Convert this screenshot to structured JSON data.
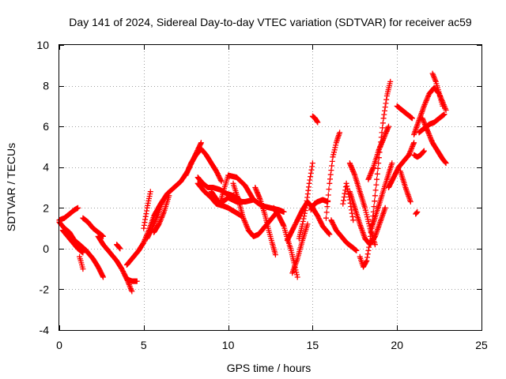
{
  "chart_data": {
    "type": "scatter",
    "title": "Day 141 of 2024, Sidereal Day-to-day VTEC variation (SDTVAR) for receiver ac59",
    "xlabel": "GPS time / hours",
    "ylabel": "SDTVAR / TECUs",
    "xlim": [
      0,
      25
    ],
    "ylim": [
      -4,
      10
    ],
    "xticks": [
      0,
      5,
      10,
      15,
      20,
      25
    ],
    "yticks": [
      -4,
      -2,
      0,
      2,
      4,
      6,
      8,
      10
    ],
    "xtick_labels": [
      "0",
      "5",
      "10",
      "15",
      "20",
      "25"
    ],
    "ytick_labels": [
      "-4",
      "-2",
      "0",
      "2",
      "4",
      "6",
      "8",
      "10"
    ],
    "grid": true,
    "marker": "+",
    "series": [
      {
        "name": "SDTVAR",
        "color": "#ff0000",
        "tracks": [
          {
            "x": [
              0.0,
              0.3,
              0.6,
              0.9,
              1.1
            ],
            "y": [
              1.4,
              1.5,
              1.7,
              1.9,
              2.0
            ]
          },
          {
            "x": [
              0.0,
              0.3,
              0.6,
              0.9,
              1.2,
              1.6,
              2.0,
              2.3,
              2.6
            ],
            "y": [
              1.3,
              1.0,
              0.8,
              0.4,
              0.2,
              -0.1,
              -0.5,
              -0.9,
              -1.4
            ]
          },
          {
            "x": [
              0.2,
              0.5,
              0.8,
              1.1,
              1.4
            ],
            "y": [
              0.9,
              0.6,
              0.3,
              0.0,
              -0.2
            ]
          },
          {
            "x": [
              1.2,
              1.4
            ],
            "y": [
              -0.4,
              -1.0
            ]
          },
          {
            "x": [
              1.4,
              1.7,
              2.0,
              2.3,
              2.6
            ],
            "y": [
              1.5,
              1.3,
              1.0,
              0.8,
              0.6
            ]
          },
          {
            "x": [
              2.3,
              2.6,
              3.0,
              3.4,
              3.7,
              4.0,
              4.3
            ],
            "y": [
              0.6,
              0.2,
              -0.2,
              -0.6,
              -1.0,
              -1.5,
              -2.1
            ]
          },
          {
            "x": [
              3.4,
              3.6
            ],
            "y": [
              0.2,
              0.0
            ]
          },
          {
            "x": [
              4.0,
              4.3,
              4.6
            ],
            "y": [
              -1.5,
              -1.6,
              -1.6
            ]
          },
          {
            "x": [
              4.0,
              4.3,
              4.7,
              5.0,
              5.3,
              5.6,
              6.0,
              6.4,
              6.8,
              7.2,
              7.6,
              8.0,
              8.4
            ],
            "y": [
              -0.8,
              -0.5,
              -0.1,
              0.3,
              0.9,
              1.6,
              2.2,
              2.7,
              3.0,
              3.3,
              3.8,
              4.5,
              5.2
            ]
          },
          {
            "x": [
              5.0,
              5.2,
              5.4
            ],
            "y": [
              1.0,
              2.0,
              2.8
            ]
          },
          {
            "x": [
              5.2,
              5.5,
              5.8,
              6.1
            ],
            "y": [
              0.5,
              1.0,
              1.6,
              2.3
            ]
          },
          {
            "x": [
              5.6,
              5.9,
              6.2,
              6.5
            ],
            "y": [
              0.8,
              1.2,
              1.8,
              2.6
            ]
          },
          {
            "x": [
              7.5,
              7.8,
              8.1,
              8.4,
              8.7,
              9.0,
              9.3,
              9.6
            ],
            "y": [
              3.6,
              4.2,
              4.6,
              4.9,
              4.6,
              4.2,
              3.8,
              3.3
            ]
          },
          {
            "x": [
              8.2,
              8.5,
              8.8,
              9.1,
              9.5,
              9.9,
              10.3,
              10.7
            ],
            "y": [
              3.5,
              3.2,
              3.0,
              3.0,
              2.9,
              2.7,
              2.6,
              2.4
            ]
          },
          {
            "x": [
              8.2,
              8.6,
              9.0,
              9.3,
              9.7,
              10.0,
              10.4,
              10.8
            ],
            "y": [
              3.2,
              2.8,
              2.5,
              2.2,
              2.1,
              2.0,
              1.8,
              1.6
            ]
          },
          {
            "x": [
              9.0,
              9.5,
              10.0,
              10.5,
              11.0,
              11.5,
              12.0,
              12.5,
              13.0,
              13.3
            ],
            "y": [
              2.8,
              2.2,
              2.5,
              2.3,
              2.3,
              2.4,
              2.1,
              2.0,
              1.9,
              1.8
            ]
          },
          {
            "x": [
              9.5,
              10.0,
              10.5,
              11.0,
              11.5
            ],
            "y": [
              2.2,
              3.6,
              3.5,
              3.1,
              2.4
            ]
          },
          {
            "x": [
              10.3,
              10.6,
              10.9,
              11.2,
              11.5,
              11.8,
              12.1,
              12.4,
              12.7,
              13.0
            ],
            "y": [
              3.2,
              2.4,
              1.5,
              0.9,
              0.6,
              0.7,
              1.0,
              1.3,
              1.6,
              1.9
            ]
          },
          {
            "x": [
              11.6,
              11.9,
              12.2,
              12.4,
              12.6,
              12.8
            ],
            "y": [
              3.0,
              2.4,
              1.6,
              0.9,
              0.3,
              -0.3
            ]
          },
          {
            "x": [
              12.7,
              13.0,
              13.3,
              13.5,
              13.7,
              13.9,
              14.1
            ],
            "y": [
              2.0,
              1.6,
              1.1,
              0.5,
              0.0,
              -0.7,
              -1.4
            ]
          },
          {
            "x": [
              13.5,
              13.8,
              14.1,
              14.4,
              14.7,
              15.0,
              15.3,
              15.6,
              16.0
            ],
            "y": [
              0.4,
              0.9,
              1.4,
              1.9,
              2.3,
              2.0,
              1.6,
              1.1,
              0.7
            ]
          },
          {
            "x": [
              13.8,
              14.1,
              14.4,
              14.7
            ],
            "y": [
              -1.2,
              -0.5,
              0.4,
              1.2
            ]
          },
          {
            "x": [
              14.2,
              14.4,
              14.6,
              14.8,
              15.0
            ],
            "y": [
              0.5,
              1.2,
              2.0,
              3.2,
              4.2
            ]
          },
          {
            "x": [
              15.0,
              15.15,
              15.3
            ],
            "y": [
              6.5,
              6.4,
              6.2
            ]
          },
          {
            "x": [
              14.9,
              15.1,
              15.3,
              15.6,
              15.9
            ],
            "y": [
              1.9,
              2.2,
              2.3,
              2.4,
              2.3
            ]
          },
          {
            "x": [
              15.8,
              16.0,
              16.2,
              16.4,
              16.6
            ],
            "y": [
              1.5,
              3.2,
              4.5,
              5.2,
              5.7
            ]
          },
          {
            "x": [
              16.1,
              16.4,
              16.7,
              17.0,
              17.3,
              17.6
            ],
            "y": [
              1.4,
              0.9,
              0.6,
              0.3,
              0.1,
              -0.1
            ]
          },
          {
            "x": [
              16.8,
              17.0,
              17.2,
              17.4
            ],
            "y": [
              2.2,
              3.2,
              2.4,
              1.4
            ]
          },
          {
            "x": [
              17.2,
              17.5,
              17.8,
              18.1,
              18.4,
              18.7,
              19.0,
              19.3
            ],
            "y": [
              2.8,
              2.0,
              1.2,
              0.5,
              0.2,
              0.6,
              1.3,
              2.0
            ]
          },
          {
            "x": [
              17.2,
              17.5,
              17.8,
              18.1,
              18.4,
              18.7
            ],
            "y": [
              4.2,
              3.6,
              2.8,
              2.0,
              1.0,
              0.2
            ]
          },
          {
            "x": [
              17.8,
              18.0,
              18.2,
              18.4,
              18.6,
              18.8,
              19.0,
              19.2,
              19.4,
              19.6
            ],
            "y": [
              -0.4,
              -0.9,
              -0.6,
              0.4,
              1.8,
              3.4,
              5.0,
              6.4,
              7.5,
              8.2
            ]
          },
          {
            "x": [
              18.5,
              18.8,
              19.1,
              19.4,
              19.7
            ],
            "y": [
              1.0,
              1.8,
              2.6,
              3.4,
              4.2
            ]
          },
          {
            "x": [
              18.3,
              18.6,
              18.9,
              19.2,
              19.5
            ],
            "y": [
              3.4,
              4.0,
              4.8,
              5.4,
              6.0
            ]
          },
          {
            "x": [
              19.5,
              19.8,
              20.1,
              20.4,
              20.7,
              21.0
            ],
            "y": [
              3.0,
              3.5,
              4.0,
              4.3,
              4.6,
              5.2
            ]
          },
          {
            "x": [
              20.2,
              20.5,
              20.8
            ],
            "y": [
              3.8,
              3.0,
              2.3
            ]
          },
          {
            "x": [
              20.0,
              20.3,
              20.6,
              20.9
            ],
            "y": [
              7.0,
              6.8,
              6.6,
              6.4
            ]
          },
          {
            "x": [
              21.0,
              21.3,
              21.6,
              21.9,
              22.2,
              22.5,
              22.9
            ],
            "y": [
              5.6,
              6.3,
              7.0,
              7.6,
              7.9,
              7.6,
              6.8
            ]
          },
          {
            "x": [
              21.3,
              21.6,
              21.9,
              22.2,
              22.5,
              22.8
            ],
            "y": [
              5.7,
              5.9,
              6.1,
              6.2,
              6.4,
              6.6
            ]
          },
          {
            "x": [
              21.5,
              21.8,
              22.1,
              22.4,
              22.7,
              22.9
            ],
            "y": [
              6.4,
              5.8,
              5.2,
              4.8,
              4.4,
              4.2
            ]
          },
          {
            "x": [
              22.1,
              22.3,
              22.5,
              22.7
            ],
            "y": [
              8.6,
              8.2,
              7.6,
              7.0
            ]
          },
          {
            "x": [
              21.0,
              21.2,
              21.4,
              21.6
            ],
            "y": [
              4.6,
              4.5,
              4.6,
              4.8
            ]
          },
          {
            "x": [
              21.1,
              21.2
            ],
            "y": [
              1.7,
              1.8
            ]
          }
        ]
      }
    ]
  }
}
